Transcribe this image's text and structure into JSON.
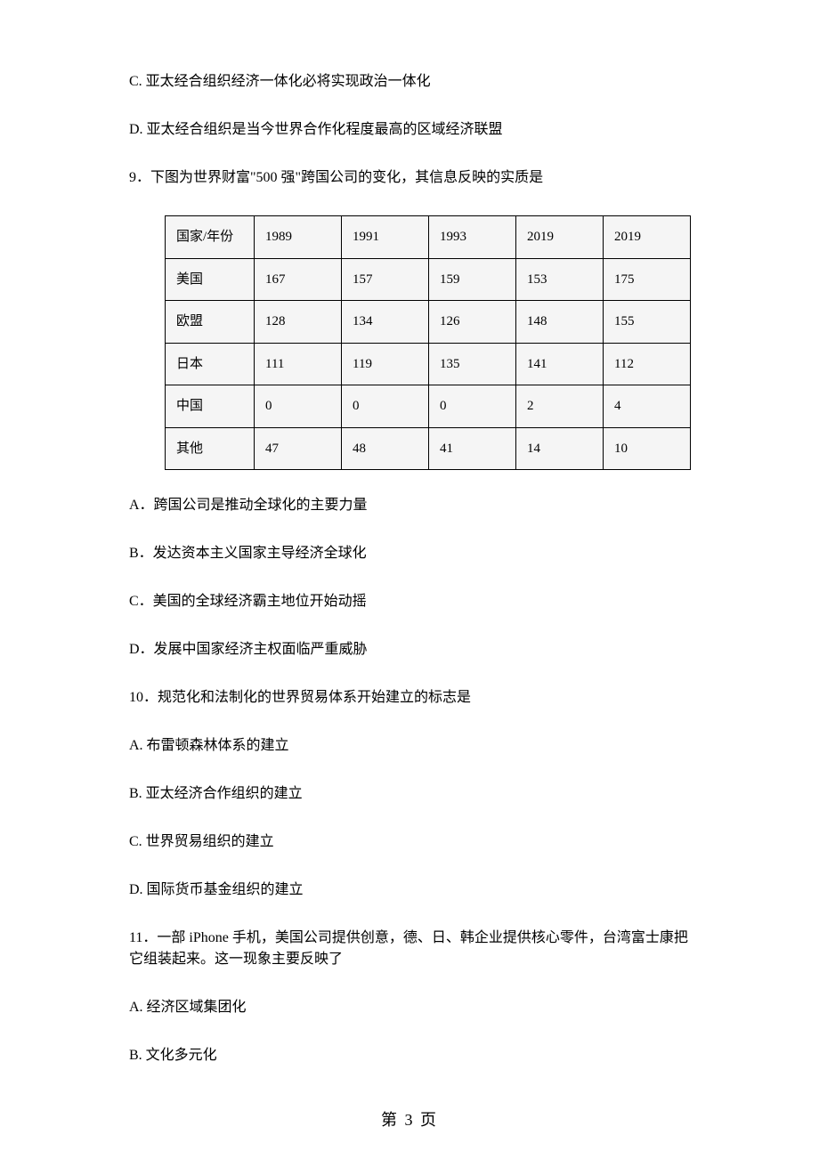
{
  "q8_options": {
    "c": "C.   亚太经合组织经济一体化必将实现政治一体化",
    "d": "D.   亚太经合组织是当今世界合作化程度最高的区域经济联盟"
  },
  "q9": {
    "stem": "9．下图为世界财富\"500 强\"跨国公司的变化，其信息反映的实质是",
    "table": {
      "columns": [
        "国家/年份",
        "1989",
        "1991",
        "1993",
        "2019",
        "2019"
      ],
      "rows": [
        [
          "美国",
          "167",
          "157",
          "159",
          "153",
          "175"
        ],
        [
          "欧盟",
          "128",
          "134",
          "126",
          "148",
          "155"
        ],
        [
          "日本",
          "111",
          "119",
          "135",
          "141",
          "112"
        ],
        [
          "中国",
          "0",
          "0",
          "0",
          "2",
          "4"
        ],
        [
          "其他",
          "47",
          "48",
          "41",
          "14",
          "10"
        ]
      ],
      "border_color": "#000000",
      "cell_bg": "#f5f5f5",
      "font_size": 15
    },
    "options": {
      "a": "A．跨国公司是推动全球化的主要力量",
      "b": "B．发达资本主义国家主导经济全球化",
      "c": "C．美国的全球经济霸主地位开始动摇",
      "d": "D．发展中国家经济主权面临严重威胁"
    }
  },
  "q10": {
    "stem": "10．规范化和法制化的世界贸易体系开始建立的标志是",
    "options": {
      "a": "A.   布雷顿森林体系的建立",
      "b": "B.   亚太经济合作组织的建立",
      "c": "C.   世界贸易组织的建立",
      "d": "D.   国际货币基金组织的建立"
    }
  },
  "q11": {
    "stem": "11．一部 iPhone 手机，美国公司提供创意，德、日、韩企业提供核心零件，台湾富士康把它组装起来。这一现象主要反映了",
    "options": {
      "a": "A.   经济区域集团化",
      "b": "B.   文化多元化"
    }
  },
  "footer": "第 3 页"
}
